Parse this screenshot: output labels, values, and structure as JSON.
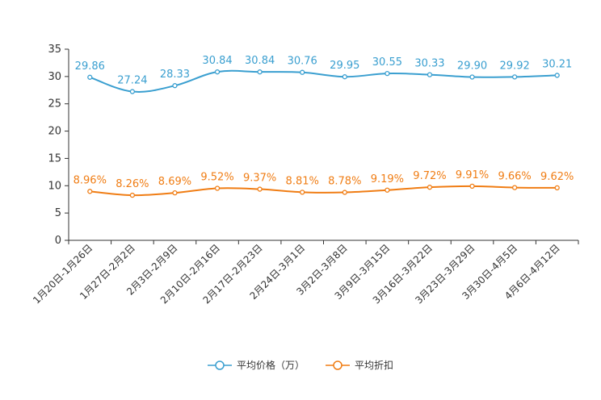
{
  "chart_data": {
    "type": "line",
    "categories": [
      "1月20日-1月26日",
      "1月27日-2月2日",
      "2月3日-2月9日",
      "2月10日-2月16日",
      "2月17日-2月23日",
      "2月24日-3月1日",
      "3月2日-3月8日",
      "3月9日-3月15日",
      "3月16日-3月22日",
      "3月23日-3月29日",
      "3月30日-4月5日",
      "4月6日-4月12日"
    ],
    "series": [
      {
        "name": "平均价格（万）",
        "color": "#3a9fd0",
        "values": [
          29.86,
          27.24,
          28.33,
          30.84,
          30.84,
          30.76,
          29.95,
          30.55,
          30.33,
          29.9,
          29.92,
          30.21
        ],
        "labels": [
          "29.86",
          "27.24",
          "28.33",
          "30.84",
          "30.84",
          "30.76",
          "29.95",
          "30.55",
          "30.33",
          "29.90",
          "29.92",
          "30.21"
        ]
      },
      {
        "name": "平均折扣",
        "color": "#f07d14",
        "values": [
          8.96,
          8.26,
          8.69,
          9.52,
          9.37,
          8.81,
          8.78,
          9.19,
          9.72,
          9.91,
          9.66,
          9.62
        ],
        "labels": [
          "8.96%",
          "8.26%",
          "8.69%",
          "9.52%",
          "9.37%",
          "8.81%",
          "8.78%",
          "9.19%",
          "9.72%",
          "9.91%",
          "9.66%",
          "9.62%"
        ]
      }
    ],
    "yticks": [
      "0",
      "5",
      "10",
      "15",
      "20",
      "25",
      "30",
      "35"
    ],
    "ylim": [
      0,
      35
    ],
    "grid": false,
    "legend": "bottom-center",
    "title": "",
    "xlabel": "",
    "ylabel": ""
  }
}
